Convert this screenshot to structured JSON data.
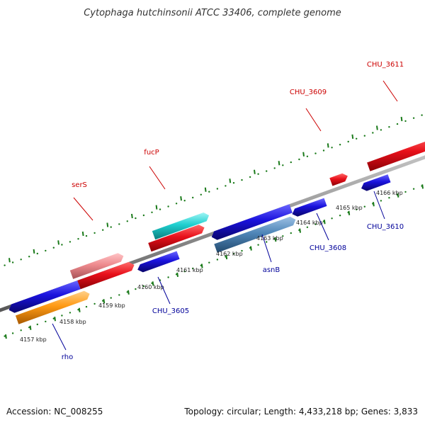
{
  "title": "Cytophaga hutchinsonii ATCC 33406, complete genome",
  "footer": {
    "accession_label": "Accession:",
    "accession": "NC_008255",
    "topology_label": "Topology:",
    "topology": "circular",
    "length_label": "Length:",
    "length": "4,433,218 bp",
    "genes_label": "Genes:",
    "genes": "3,833"
  },
  "colors": {
    "forward_label": "#cc0000",
    "reverse_label": "#000099",
    "ticks": "#1a7a1a",
    "backbone": "#808080",
    "red_cds": "#e8101a",
    "blue_cds": "#1a12dd",
    "pink_cds": "#ee8a8e",
    "cyan_cds": "#1fcfcf",
    "steel_cds": "#4f86b8",
    "orange_cds": "#ff9a14"
  },
  "ticks": [
    {
      "label": "4157 kbp"
    },
    {
      "label": "4158 kbp"
    },
    {
      "label": "4159 kbp"
    },
    {
      "label": "4160 kbp"
    },
    {
      "label": "4161 kbp"
    },
    {
      "label": "4162 kbp"
    },
    {
      "label": "4163 kbp"
    },
    {
      "label": "4164 kbp"
    },
    {
      "label": "4165 kbp"
    },
    {
      "label": "4166 kbp"
    }
  ],
  "forward_labels": [
    {
      "text": "serS"
    },
    {
      "text": "fucP"
    },
    {
      "text": "CHU_3609"
    },
    {
      "text": "CHU_3611"
    }
  ],
  "reverse_labels": [
    {
      "text": "rho"
    },
    {
      "text": "CHU_3605"
    },
    {
      "text": "asnB"
    },
    {
      "text": "CHU_3608"
    },
    {
      "text": "CHU_3610"
    }
  ]
}
